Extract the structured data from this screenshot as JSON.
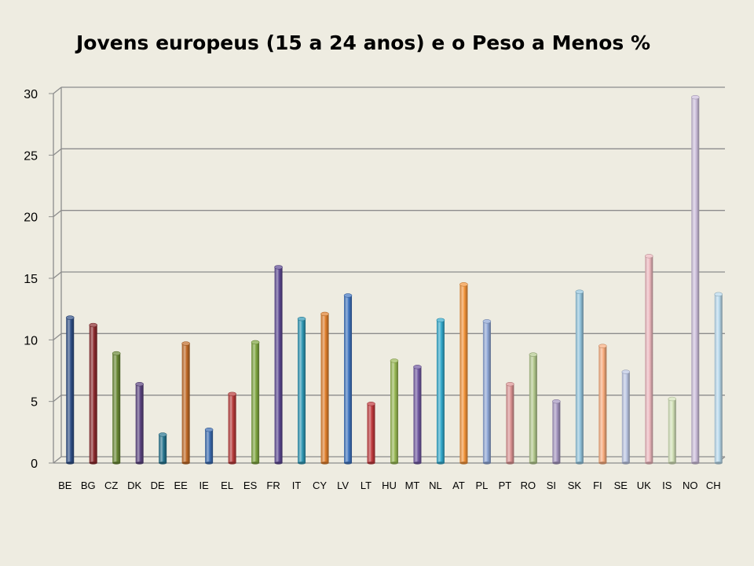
{
  "chart_data": {
    "type": "bar",
    "title": "Jovens europeus (15 a 24 anos) e o Peso a Menos %",
    "xlabel": "",
    "ylabel": "",
    "ylim": [
      0,
      30
    ],
    "yticks": [
      0,
      5,
      10,
      15,
      20,
      25,
      30
    ],
    "grid": true,
    "legend": "none",
    "categories": [
      "BE",
      "BG",
      "CZ",
      "DK",
      "DE",
      "EE",
      "IE",
      "EL",
      "ES",
      "FR",
      "IT",
      "CY",
      "LV",
      "LT",
      "HU",
      "MT",
      "NL",
      "AT",
      "PL",
      "PT",
      "RO",
      "SI",
      "SK",
      "FI",
      "SE",
      "UK",
      "IS",
      "NO",
      "CH"
    ],
    "values": [
      11.8,
      11.2,
      8.9,
      6.4,
      2.3,
      9.7,
      2.7,
      5.6,
      9.8,
      15.9,
      11.7,
      12.1,
      13.6,
      4.8,
      8.3,
      7.8,
      11.6,
      14.5,
      11.5,
      6.4,
      8.8,
      5.0,
      13.9,
      9.5,
      7.4,
      16.8,
      5.2,
      29.7,
      13.7
    ],
    "colors": [
      "#2e4e86",
      "#8b2a2d",
      "#6a8935",
      "#5a437f",
      "#26758f",
      "#c06a26",
      "#3b6bb0",
      "#b73a3a",
      "#7ea540",
      "#5b4791",
      "#2f97b4",
      "#e07f2c",
      "#3f74c0",
      "#c0393c",
      "#98b854",
      "#7058a1",
      "#33a9cc",
      "#f3943a",
      "#8ea6d6",
      "#dc9393",
      "#b3c98d",
      "#a596c0",
      "#92c4dd",
      "#f8ac7d",
      "#bcc6e3",
      "#ecb7bd",
      "#d3e2b8",
      "#cdbfdc",
      "#b8d9ec"
    ]
  }
}
